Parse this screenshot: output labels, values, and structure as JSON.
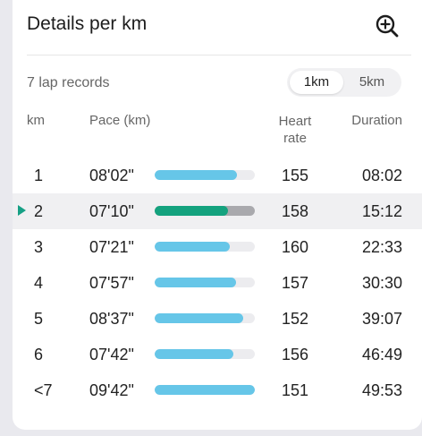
{
  "header": {
    "title": "Details per km"
  },
  "summary": {
    "lap_records": "7 lap records"
  },
  "unit_toggle": {
    "options": [
      "1km",
      "5km"
    ],
    "selected": "1km"
  },
  "columns": {
    "km": "km",
    "pace": "Pace (km)",
    "heart_rate": "Heart\nrate",
    "duration": "Duration"
  },
  "colors": {
    "pace_bar": "#66c6e8",
    "pace_bar_selected": "#14a27e",
    "marker": "#16a085"
  },
  "laps": [
    {
      "km": "1",
      "pace": "08'02\"",
      "pace_fraction": 0.82,
      "heart_rate": "155",
      "duration": "08:02",
      "selected": false
    },
    {
      "km": "2",
      "pace": "07'10\"",
      "pace_fraction": 0.73,
      "heart_rate": "158",
      "duration": "15:12",
      "selected": true
    },
    {
      "km": "3",
      "pace": "07'21\"",
      "pace_fraction": 0.75,
      "heart_rate": "160",
      "duration": "22:33",
      "selected": false
    },
    {
      "km": "4",
      "pace": "07'57\"",
      "pace_fraction": 0.81,
      "heart_rate": "157",
      "duration": "30:30",
      "selected": false
    },
    {
      "km": "5",
      "pace": "08'37\"",
      "pace_fraction": 0.88,
      "heart_rate": "152",
      "duration": "39:07",
      "selected": false
    },
    {
      "km": "6",
      "pace": "07'42\"",
      "pace_fraction": 0.79,
      "heart_rate": "156",
      "duration": "46:49",
      "selected": false
    },
    {
      "km": "<7",
      "pace": "09'42\"",
      "pace_fraction": 1.0,
      "heart_rate": "151",
      "duration": "49:53",
      "selected": false
    }
  ]
}
